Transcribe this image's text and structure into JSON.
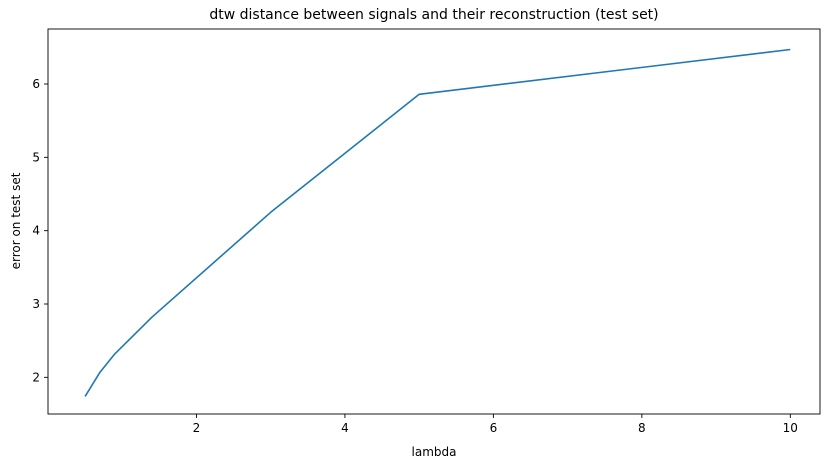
{
  "chart_data": {
    "type": "line",
    "title": "dtw distance between signals and their reconstruction (test set)",
    "xlabel": "lambda",
    "ylabel": "error on test set",
    "xlim": [
      0.0,
      10.4
    ],
    "ylim": [
      1.5,
      6.75
    ],
    "xticks": [
      2,
      4,
      6,
      8,
      10
    ],
    "yticks": [
      2,
      3,
      4,
      5,
      6
    ],
    "grid": false,
    "series": [
      {
        "color": "#1f77b4",
        "x": [
          0.5,
          0.7,
          0.9,
          1.4,
          3.0,
          5.0,
          10.0
        ],
        "y": [
          1.74,
          2.07,
          2.32,
          2.82,
          4.25,
          5.86,
          6.47
        ]
      }
    ]
  }
}
